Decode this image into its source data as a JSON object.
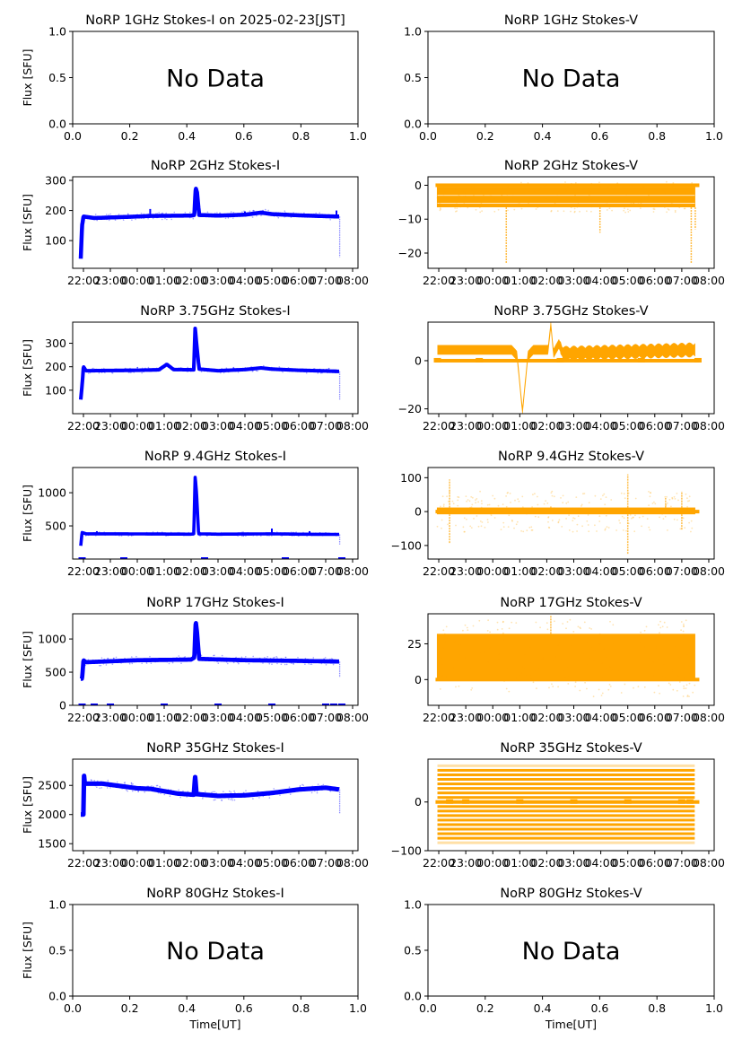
{
  "figure": {
    "xlabel": "Time[UT]",
    "ylabel": "Flux [SFU]",
    "no_data_text": "No Data",
    "colors": {
      "stokes_i": "#0000ff",
      "stokes_v": "#ffa500"
    }
  },
  "chart_data": [
    {
      "id": "1ghz-i",
      "type": "scatter",
      "title": "NoRP 1GHz Stokes-I on 2025-02-23[JST]",
      "ylabel": "Flux [SFU]",
      "xlabel": "",
      "no_data": true,
      "xlim": [
        0,
        1
      ],
      "ylim": [
        0,
        1
      ],
      "xticks": [
        "0.0",
        "0.2",
        "0.4",
        "0.6",
        "0.8",
        "1.0"
      ],
      "yticks": [
        {
          "v": 0,
          "l": "0.0"
        },
        {
          "v": 0.5,
          "l": "0.5"
        },
        {
          "v": 1,
          "l": "1.0"
        }
      ]
    },
    {
      "id": "1ghz-v",
      "type": "scatter",
      "title": "NoRP 1GHz Stokes-V",
      "ylabel": "",
      "xlabel": "",
      "no_data": true,
      "xlim": [
        0,
        1
      ],
      "ylim": [
        0,
        1
      ],
      "xticks": [
        "0.0",
        "0.2",
        "0.4",
        "0.6",
        "0.8",
        "1.0"
      ],
      "yticks": [
        {
          "v": 0,
          "l": "0.0"
        },
        {
          "v": 0.5,
          "l": "0.5"
        },
        {
          "v": 1,
          "l": "1.0"
        }
      ]
    },
    {
      "id": "2ghz-i",
      "type": "scatter",
      "title": "NoRP 2GHz Stokes-I",
      "ylabel": "Flux [SFU]",
      "series": "stokes_i",
      "ylim": [
        8,
        312
      ],
      "yticks": [
        {
          "v": 100,
          "l": "100"
        },
        {
          "v": 200,
          "l": "200"
        },
        {
          "v": 300,
          "l": "300"
        }
      ],
      "baseline": [
        [
          -2.1,
          40
        ],
        [
          -2.05,
          150
        ],
        [
          -2.0,
          180
        ],
        [
          -1.6,
          175
        ],
        [
          0,
          180
        ],
        [
          0.5,
          182
        ],
        [
          2.0,
          183
        ],
        [
          2.12,
          185
        ],
        [
          2.17,
          275
        ],
        [
          2.22,
          260
        ],
        [
          2.3,
          185
        ],
        [
          3,
          183
        ],
        [
          4,
          186
        ],
        [
          4.6,
          193
        ],
        [
          5,
          188
        ],
        [
          6,
          184
        ],
        [
          7,
          181
        ],
        [
          7.5,
          180
        ]
      ],
      "spikes": [
        [
          0.48,
          205
        ],
        [
          4.0,
          197
        ],
        [
          7.4,
          200
        ]
      ],
      "band": 6,
      "tail": [
        [
          7.52,
          45
        ]
      ]
    },
    {
      "id": "2ghz-v",
      "type": "scatter",
      "title": "NoRP 2GHz Stokes-V",
      "ylabel": "",
      "series": "stokes_v",
      "ylim": [
        -24.5,
        2.5
      ],
      "yticks": [
        {
          "v": 0,
          "l": "0"
        },
        {
          "v": -10,
          "l": "−10"
        },
        {
          "v": -20,
          "l": "−20"
        }
      ],
      "band_range": [
        -6.5,
        -0.5
      ],
      "noise": [
        -8,
        1
      ],
      "zero_line": true,
      "spikes": [
        [
          0.5,
          -23
        ],
        [
          3.97,
          -14
        ],
        [
          7.35,
          -23
        ],
        [
          7.5,
          -13
        ]
      ]
    },
    {
      "id": "3.75ghz-i",
      "type": "scatter",
      "title": "NoRP 3.75GHz Stokes-I",
      "ylabel": "Flux [SFU]",
      "series": "stokes_i",
      "ylim": [
        0,
        390
      ],
      "yticks": [
        {
          "v": 100,
          "l": "100"
        },
        {
          "v": 200,
          "l": "200"
        },
        {
          "v": 300,
          "l": "300"
        }
      ],
      "baseline": [
        [
          -2.1,
          60
        ],
        [
          -2.05,
          120
        ],
        [
          -2.0,
          200
        ],
        [
          -1.9,
          183
        ],
        [
          0,
          185
        ],
        [
          0.8,
          187
        ],
        [
          1.1,
          210
        ],
        [
          1.35,
          188
        ],
        [
          2.1,
          187
        ],
        [
          2.15,
          365
        ],
        [
          2.2,
          300
        ],
        [
          2.3,
          190
        ],
        [
          3,
          183
        ],
        [
          4,
          188
        ],
        [
          4.6,
          195
        ],
        [
          5,
          190
        ],
        [
          6,
          185
        ],
        [
          7,
          182
        ],
        [
          7.5,
          180
        ]
      ],
      "spikes": [],
      "band": 6,
      "tail": [
        [
          7.52,
          60
        ]
      ]
    },
    {
      "id": "3.75ghz-v",
      "type": "scatter",
      "title": "NoRP 3.75GHz Stokes-V",
      "ylabel": "",
      "series": "stokes_v",
      "ylim": [
        -22,
        16
      ],
      "yticks": [
        {
          "v": 0,
          "l": "0"
        },
        {
          "v": -20,
          "l": "−20"
        }
      ],
      "wave": [
        [
          -2.1,
          4.5
        ],
        [
          0.7,
          4.5
        ],
        [
          0.9,
          2
        ],
        [
          1.1,
          -21
        ],
        [
          1.3,
          2
        ],
        [
          1.5,
          4.5
        ],
        [
          2.05,
          4.5
        ],
        [
          2.15,
          15
        ],
        [
          2.25,
          3
        ],
        [
          2.45,
          7
        ],
        [
          2.6,
          3
        ],
        [
          7.5,
          4.5
        ]
      ],
      "band": 4,
      "zero_line": true,
      "zero_marks": [
        -2.05,
        -0.5,
        2.5,
        5.5,
        7.6
      ]
    },
    {
      "id": "9.4ghz-i",
      "type": "scatter",
      "title": "NoRP 9.4GHz Stokes-I",
      "ylabel": "Flux [SFU]",
      "series": "stokes_i",
      "ylim": [
        0,
        1380
      ],
      "yticks": [
        {
          "v": 500,
          "l": "500"
        },
        {
          "v": 1000,
          "l": "1000"
        }
      ],
      "baseline": [
        [
          -2.1,
          200
        ],
        [
          -2.05,
          400
        ],
        [
          -1.9,
          380
        ],
        [
          -0.6,
          380
        ],
        [
          2.0,
          375
        ],
        [
          2.1,
          380
        ],
        [
          2.15,
          1240
        ],
        [
          2.2,
          1000
        ],
        [
          2.28,
          380
        ],
        [
          3,
          375
        ],
        [
          5,
          380
        ],
        [
          6,
          375
        ],
        [
          7.5,
          372
        ]
      ],
      "spikes": [
        [
          -1.5,
          420
        ],
        [
          5.0,
          460
        ],
        [
          6.4,
          420
        ],
        [
          7.0,
          400
        ]
      ],
      "band": 15,
      "tail": [
        [
          7.52,
          220
        ]
      ],
      "zero_marks": [
        -2.05,
        -0.5,
        2.5,
        5.5,
        7.6
      ]
    },
    {
      "id": "9.4ghz-v",
      "type": "scatter",
      "title": "NoRP 9.4GHz Stokes-V",
      "ylabel": "",
      "series": "stokes_v",
      "ylim": [
        -140,
        130
      ],
      "yticks": [
        {
          "v": 100,
          "l": "100"
        },
        {
          "v": 0,
          "l": "0"
        },
        {
          "v": -100,
          "l": "−100"
        }
      ],
      "band_range": [
        -8,
        12
      ],
      "noise": [
        -60,
        60
      ],
      "zero_line": true,
      "spikes": [
        [
          -1.6,
          95
        ],
        [
          -1.6,
          -95
        ],
        [
          2.15,
          15
        ],
        [
          5.0,
          110
        ],
        [
          5.0,
          -125
        ],
        [
          6.4,
          40
        ],
        [
          7.0,
          60
        ],
        [
          7.0,
          -55
        ]
      ]
    },
    {
      "id": "17ghz-i",
      "type": "scatter",
      "title": "NoRP 17GHz Stokes-I",
      "ylabel": "Flux [SFU]",
      "series": "stokes_i",
      "ylim": [
        0,
        1380
      ],
      "yticks": [
        {
          "v": 0,
          "l": "0"
        },
        {
          "v": 500,
          "l": "500"
        },
        {
          "v": 1000,
          "l": "1000"
        }
      ],
      "baseline": [
        [
          -2.05,
          400
        ],
        [
          -2.0,
          680
        ],
        [
          -1.9,
          650
        ],
        [
          0,
          680
        ],
        [
          2.0,
          690
        ],
        [
          2.12,
          720
        ],
        [
          2.17,
          1270
        ],
        [
          2.22,
          1100
        ],
        [
          2.3,
          700
        ],
        [
          4,
          680
        ],
        [
          6,
          670
        ],
        [
          7.5,
          660
        ]
      ],
      "spikes": [],
      "band": 30,
      "tail": [
        [
          7.52,
          420
        ]
      ],
      "zero_marks": [
        -2.05,
        -1.6,
        -1.0,
        1.0,
        3.0,
        5.0,
        7.0,
        7.3,
        7.6
      ]
    },
    {
      "id": "17ghz-v",
      "type": "scatter",
      "title": "NoRP 17GHz Stokes-V",
      "ylabel": "",
      "series": "stokes_v",
      "ylim": [
        -18,
        46
      ],
      "yticks": [
        {
          "v": 0,
          "l": "0"
        },
        {
          "v": 25,
          "l": "25"
        }
      ],
      "band_range": [
        0,
        32
      ],
      "noise": [
        -12,
        42
      ],
      "zero_line": true,
      "spikes": [
        [
          2.15,
          45
        ]
      ]
    },
    {
      "id": "35ghz-i",
      "type": "scatter",
      "title": "NoRP 35GHz Stokes-I",
      "ylabel": "Flux [SFU]",
      "series": "stokes_i",
      "ylim": [
        1380,
        2950
      ],
      "yticks": [
        {
          "v": 1500,
          "l": "1500"
        },
        {
          "v": 2000,
          "l": "2000"
        },
        {
          "v": 2500,
          "l": "2500"
        }
      ],
      "baseline": [
        [
          -2.0,
          2000
        ],
        [
          -1.98,
          2680
        ],
        [
          -1.95,
          2530
        ],
        [
          -1.3,
          2530
        ],
        [
          0,
          2450
        ],
        [
          0.5,
          2440
        ],
        [
          1.5,
          2360
        ],
        [
          2.1,
          2340
        ],
        [
          2.15,
          2650
        ],
        [
          2.2,
          2350
        ],
        [
          3,
          2320
        ],
        [
          4,
          2330
        ],
        [
          5,
          2370
        ],
        [
          6,
          2430
        ],
        [
          7,
          2460
        ],
        [
          7.5,
          2430
        ]
      ],
      "spikes": [],
      "band": 40,
      "tail": [
        [
          7.52,
          2020
        ]
      ]
    },
    {
      "id": "35ghz-v",
      "type": "scatter",
      "title": "NoRP 35GHz Stokes-V",
      "ylabel": "",
      "series": "stokes_v",
      "ylim": [
        -100,
        88
      ],
      "yticks": [
        {
          "v": 0,
          "l": "0"
        },
        {
          "v": -100,
          "l": "−100"
        }
      ],
      "levels_range": [
        -88,
        80
      ],
      "level_step": 9.3,
      "zero_line": true,
      "zero_marks": [
        -1.6,
        -1.0,
        1.0,
        3.0,
        5.0,
        7.0,
        7.3
      ]
    },
    {
      "id": "80ghz-i",
      "type": "scatter",
      "title": "NoRP 80GHz Stokes-I",
      "ylabel": "Flux [SFU]",
      "xlabel": "Time[UT]",
      "no_data": true,
      "xlim": [
        0,
        1
      ],
      "ylim": [
        0,
        1
      ],
      "xticks": [
        "0.0",
        "0.2",
        "0.4",
        "0.6",
        "0.8",
        "1.0"
      ],
      "yticks": [
        {
          "v": 0,
          "l": "0.0"
        },
        {
          "v": 0.5,
          "l": "0.5"
        },
        {
          "v": 1,
          "l": "1.0"
        }
      ]
    },
    {
      "id": "80ghz-v",
      "type": "scatter",
      "title": "NoRP 80GHz Stokes-V",
      "ylabel": "",
      "xlabel": "Time[UT]",
      "no_data": true,
      "xlim": [
        0,
        1
      ],
      "ylim": [
        0,
        1
      ],
      "xticks": [
        "0.0",
        "0.2",
        "0.4",
        "0.6",
        "0.8",
        "1.0"
      ],
      "yticks": [
        {
          "v": 0,
          "l": "0.0"
        },
        {
          "v": 0.5,
          "l": "0.5"
        },
        {
          "v": 1,
          "l": "1.0"
        }
      ]
    }
  ],
  "time_axis": {
    "unit": "hours relative to 00:00 UT (negative = previous day)",
    "xlim": [
      -2.4,
      8.2
    ],
    "ticks": [
      {
        "v": -2,
        "l": "22:00"
      },
      {
        "v": -1,
        "l": "23:00"
      },
      {
        "v": 0,
        "l": "00:00"
      },
      {
        "v": 1,
        "l": "01:00"
      },
      {
        "v": 2,
        "l": "02:00"
      },
      {
        "v": 3,
        "l": "03:00"
      },
      {
        "v": 4,
        "l": "04:00"
      },
      {
        "v": 5,
        "l": "05:00"
      },
      {
        "v": 6,
        "l": "06:00"
      },
      {
        "v": 7,
        "l": "07:00"
      },
      {
        "v": 8,
        "l": "08:00"
      }
    ],
    "data_span": [
      -2.1,
      7.55
    ]
  }
}
